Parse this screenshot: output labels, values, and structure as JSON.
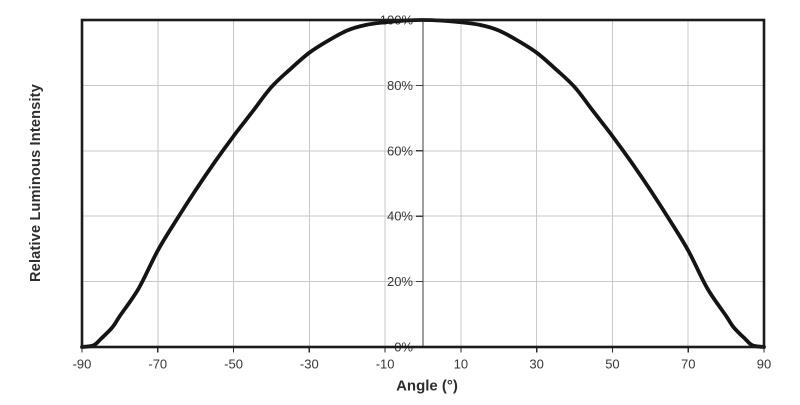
{
  "chart_data": {
    "type": "line",
    "title": "",
    "xlabel": "Angle (°)",
    "ylabel": "Relative Luminous Intensity",
    "xlim": [
      -90,
      90
    ],
    "ylim": [
      0,
      100
    ],
    "grid": true,
    "legend_position": "none",
    "x_ticks": [
      -90,
      -70,
      -50,
      -30,
      -10,
      10,
      30,
      50,
      70,
      90
    ],
    "x_tick_labels": [
      "-90",
      "-70",
      "-50",
      "-30",
      "-10",
      "10",
      "30",
      "50",
      "70",
      "90"
    ],
    "y_ticks": [
      0,
      20,
      40,
      60,
      80,
      100
    ],
    "y_tick_labels": [
      "0%",
      "20%",
      "40%",
      "60%",
      "80%",
      "100%"
    ],
    "series": [
      {
        "name": "relative_luminous_intensity",
        "color": "#141414",
        "x": [
          -90,
          -87,
          -85,
          -82,
          -80,
          -75,
          -70,
          -65,
          -60,
          -55,
          -50,
          -45,
          -40,
          -35,
          -30,
          -25,
          -20,
          -15,
          -10,
          -5,
          0,
          5,
          10,
          15,
          20,
          25,
          30,
          35,
          40,
          45,
          50,
          55,
          60,
          65,
          70,
          75,
          80,
          82,
          85,
          87,
          90
        ],
        "y": [
          0,
          0.5,
          2.5,
          6,
          9.5,
          18,
          29.5,
          39,
          48,
          56.5,
          64.5,
          72,
          79.5,
          85,
          90,
          93.7,
          96.8,
          98.5,
          99.3,
          99.8,
          100,
          99.8,
          99.3,
          98.5,
          96.8,
          93.7,
          90,
          85,
          79.5,
          72,
          64.5,
          56.5,
          48,
          39,
          29.5,
          18,
          9.5,
          6,
          2.5,
          0.5,
          0
        ]
      }
    ]
  },
  "colors": {
    "background": "#ffffff",
    "curve": "#141414",
    "frame": "#1b1b1b",
    "grid": "#c9c9c9",
    "center_axis": "#3d3d3d",
    "tick": "#2b2b2b",
    "tick_text": "#373737"
  }
}
